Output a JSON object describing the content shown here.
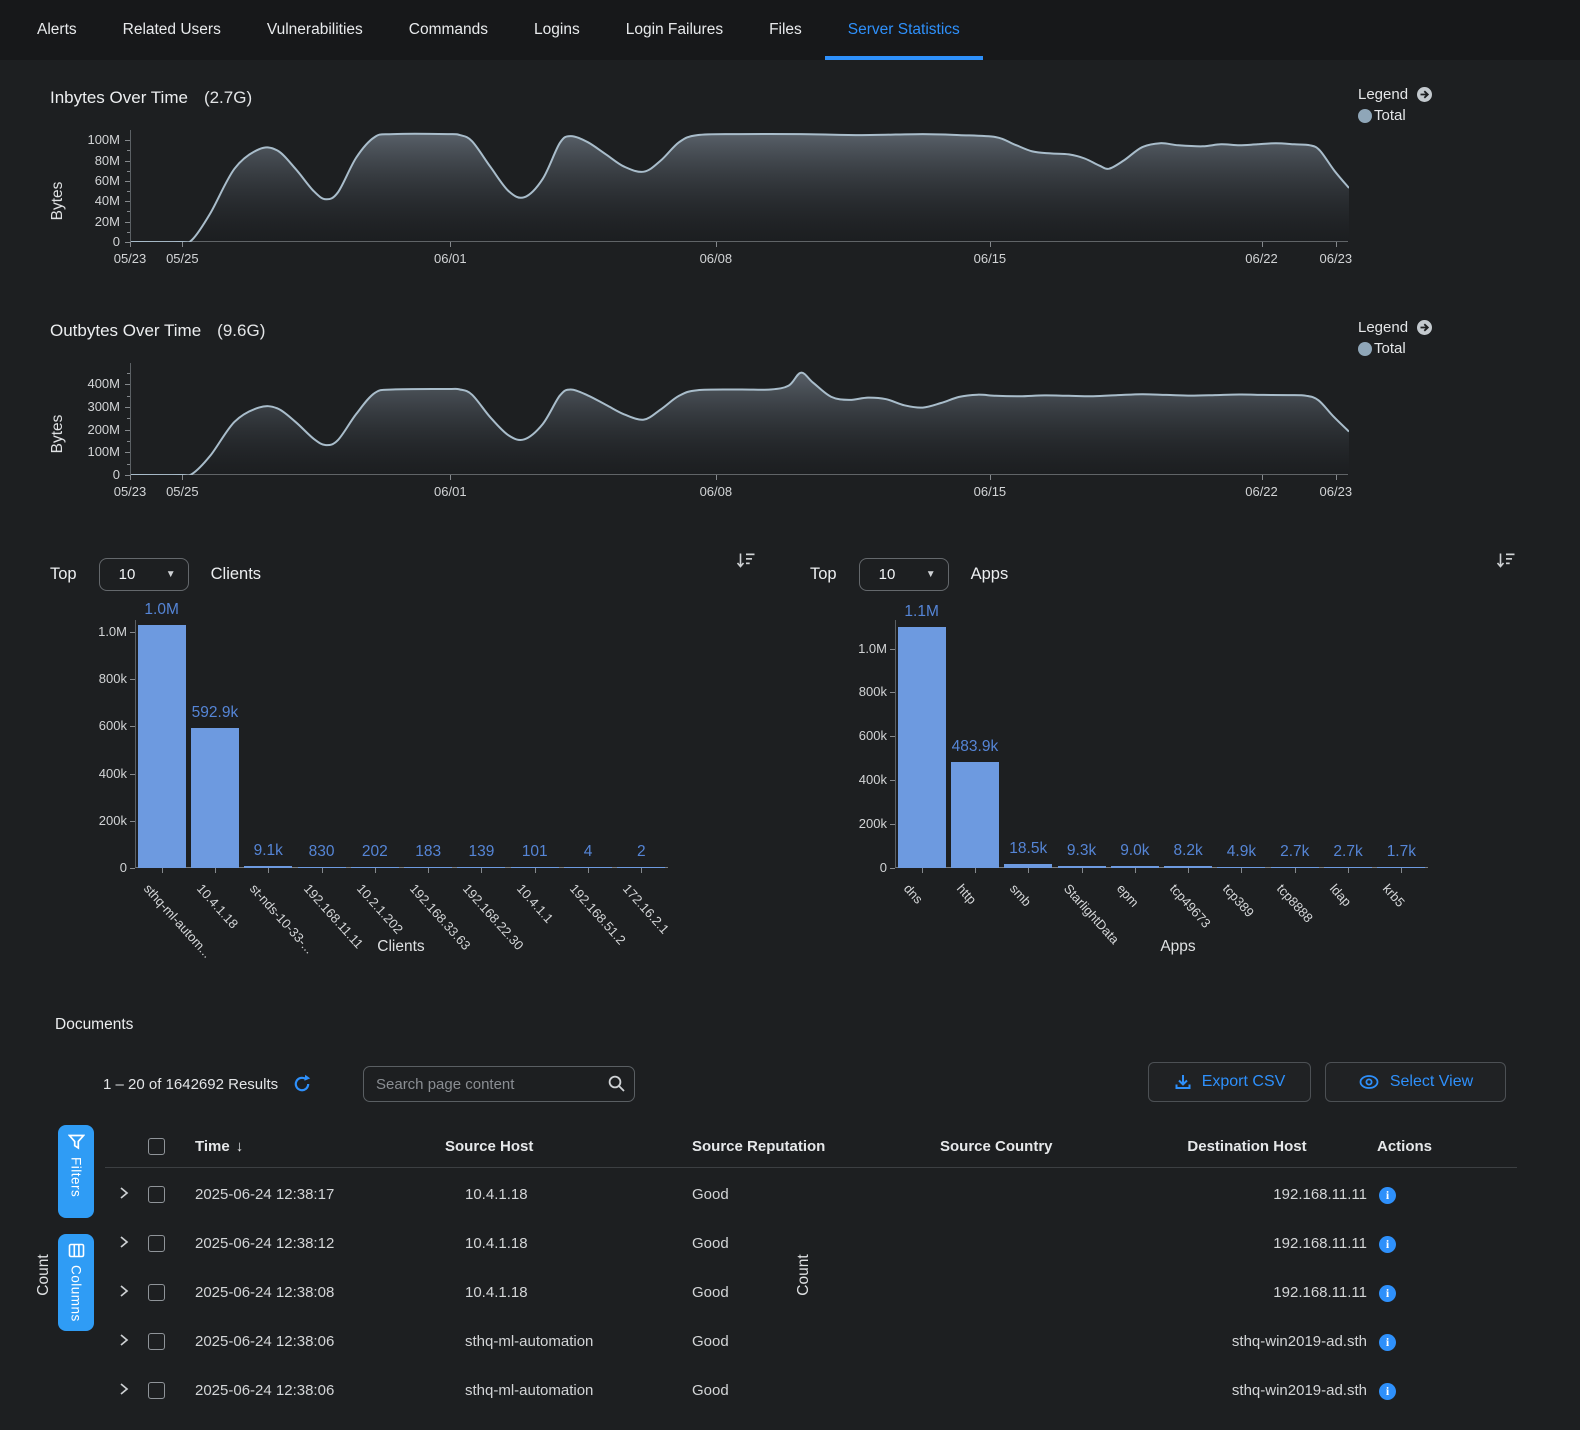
{
  "tabs": [
    {
      "label": "Alerts",
      "active": false
    },
    {
      "label": "Related Users",
      "active": false
    },
    {
      "label": "Vulnerabilities",
      "active": false
    },
    {
      "label": "Commands",
      "active": false
    },
    {
      "label": "Logins",
      "active": false
    },
    {
      "label": "Login Failures",
      "active": false
    },
    {
      "label": "Files",
      "active": false
    },
    {
      "label": "Server Statistics",
      "active": true
    }
  ],
  "legend": {
    "label": "Legend",
    "item": "Total",
    "dot_color": "#8fa6b8"
  },
  "top_controls": {
    "top_label": "Top"
  },
  "colors": {
    "accent": "#2e90fb",
    "bar_fill": "#6d9ae0",
    "bar_label": "#5585d6",
    "line": "#a9bdcb",
    "side_button": "#2f9cf5"
  },
  "chart_data": [
    {
      "type": "area",
      "title": "Inbytes Over Time",
      "total": "(2.7G)",
      "ylabel": "Bytes",
      "unit": "MB",
      "ylim": [
        0,
        110
      ],
      "legend": "Total",
      "y_ticks": [
        {
          "v": 0,
          "label": "0"
        },
        {
          "v": 20,
          "label": "20M"
        },
        {
          "v": 40,
          "label": "40M"
        },
        {
          "v": 60,
          "label": "60M"
        },
        {
          "v": 80,
          "label": "80M"
        },
        {
          "v": 100,
          "label": "100M"
        }
      ],
      "x_ticks": [
        {
          "p": 0,
          "label": "05/23"
        },
        {
          "p": 4.3,
          "label": "05/25"
        },
        {
          "p": 26.3,
          "label": "06/01"
        },
        {
          "p": 48.1,
          "label": "06/08"
        },
        {
          "p": 70.6,
          "label": "06/15"
        },
        {
          "p": 92.9,
          "label": "06/22"
        },
        {
          "p": 99,
          "label": "06/23"
        }
      ],
      "series": [
        {
          "name": "Total",
          "points": [
            [
              0,
              0
            ],
            [
              4,
              0
            ],
            [
              5,
              2
            ],
            [
              6.5,
              28
            ],
            [
              8.5,
              72
            ],
            [
              10.5,
              91
            ],
            [
              12,
              90
            ],
            [
              13.5,
              72
            ],
            [
              15,
              50
            ],
            [
              16,
              42
            ],
            [
              17,
              49
            ],
            [
              18.5,
              83
            ],
            [
              20,
              103
            ],
            [
              21.5,
              106
            ],
            [
              26,
              106
            ],
            [
              27,
              105
            ],
            [
              28,
              99
            ],
            [
              29.5,
              74
            ],
            [
              31,
              50
            ],
            [
              32.3,
              44
            ],
            [
              33.8,
              62
            ],
            [
              35.2,
              97
            ],
            [
              36.1,
              104
            ],
            [
              37.5,
              98
            ],
            [
              39,
              86
            ],
            [
              40.5,
              74
            ],
            [
              42.1,
              69
            ],
            [
              43.5,
              80
            ],
            [
              45,
              98
            ],
            [
              46.5,
              105
            ],
            [
              50,
              106
            ],
            [
              55,
              106
            ],
            [
              60,
              105
            ],
            [
              65,
              106
            ],
            [
              68,
              105
            ],
            [
              71,
              103
            ],
            [
              72.5,
              96
            ],
            [
              74,
              89
            ],
            [
              75.5,
              87
            ],
            [
              77,
              86
            ],
            [
              78.3,
              82
            ],
            [
              79.5,
              75
            ],
            [
              80.3,
              72
            ],
            [
              81.5,
              80
            ],
            [
              83,
              93
            ],
            [
              84.5,
              97
            ],
            [
              86,
              95
            ],
            [
              88,
              94
            ],
            [
              89.5,
              96
            ],
            [
              91,
              95
            ],
            [
              92.5,
              96
            ],
            [
              94,
              97
            ],
            [
              95.5,
              96
            ],
            [
              96.8,
              95
            ],
            [
              97.6,
              90
            ],
            [
              98.8,
              70
            ],
            [
              100,
              53
            ]
          ]
        }
      ]
    },
    {
      "type": "area",
      "title": "Outbytes Over Time",
      "total": "(9.6G)",
      "ylabel": "Bytes",
      "unit": "MB",
      "ylim": [
        0,
        495
      ],
      "legend": "Total",
      "y_ticks": [
        {
          "v": 0,
          "label": "0"
        },
        {
          "v": 100,
          "label": "100M"
        },
        {
          "v": 200,
          "label": "200M"
        },
        {
          "v": 300,
          "label": "300M"
        },
        {
          "v": 400,
          "label": "400M"
        }
      ],
      "x_ticks": [
        {
          "p": 0,
          "label": "05/23"
        },
        {
          "p": 4.3,
          "label": "05/25"
        },
        {
          "p": 26.3,
          "label": "06/01"
        },
        {
          "p": 48.1,
          "label": "06/08"
        },
        {
          "p": 70.6,
          "label": "06/15"
        },
        {
          "p": 92.9,
          "label": "06/22"
        },
        {
          "p": 99,
          "label": "06/23"
        }
      ],
      "series": [
        {
          "name": "Total",
          "points": [
            [
              0,
              0
            ],
            [
              4,
              0
            ],
            [
              5,
              4
            ],
            [
              6.5,
              85
            ],
            [
              8.5,
              235
            ],
            [
              10.5,
              298
            ],
            [
              12,
              295
            ],
            [
              13.5,
              235
            ],
            [
              15,
              160
            ],
            [
              16,
              132
            ],
            [
              17,
              155
            ],
            [
              18.5,
              270
            ],
            [
              20,
              362
            ],
            [
              21.5,
              378
            ],
            [
              26,
              380
            ],
            [
              27,
              378
            ],
            [
              28,
              355
            ],
            [
              29.5,
              255
            ],
            [
              31,
              175
            ],
            [
              32.3,
              158
            ],
            [
              33.8,
              225
            ],
            [
              35.2,
              350
            ],
            [
              36.1,
              378
            ],
            [
              37.5,
              352
            ],
            [
              39,
              310
            ],
            [
              40.5,
              268
            ],
            [
              42.1,
              245
            ],
            [
              43.5,
              290
            ],
            [
              45,
              350
            ],
            [
              46.5,
              375
            ],
            [
              50,
              378
            ],
            [
              52.5,
              378
            ],
            [
              54,
              395
            ],
            [
              55,
              452
            ],
            [
              56,
              408
            ],
            [
              57.5,
              345
            ],
            [
              59,
              332
            ],
            [
              60.5,
              342
            ],
            [
              62,
              335
            ],
            [
              63.5,
              308
            ],
            [
              65,
              298
            ],
            [
              66.5,
              318
            ],
            [
              68,
              345
            ],
            [
              69.5,
              355
            ],
            [
              71,
              350
            ],
            [
              73,
              348
            ],
            [
              75,
              352
            ],
            [
              77,
              350
            ],
            [
              79,
              348
            ],
            [
              81,
              353
            ],
            [
              83,
              357
            ],
            [
              85,
              354
            ],
            [
              87,
              351
            ],
            [
              89,
              353
            ],
            [
              91,
              356
            ],
            [
              93,
              354
            ],
            [
              95,
              353
            ],
            [
              96.5,
              350
            ],
            [
              97.5,
              330
            ],
            [
              98.7,
              260
            ],
            [
              100,
              192
            ]
          ]
        }
      ]
    },
    {
      "type": "bar",
      "title": "Top 10 Clients",
      "top_value": "10",
      "group_label": "Clients",
      "xlabel": "Clients",
      "ylabel": "Count",
      "ylim": [
        0,
        1050000
      ],
      "y_ticks": [
        {
          "v": 0,
          "label": "0"
        },
        {
          "v": 200000,
          "label": "200k"
        },
        {
          "v": 400000,
          "label": "400k"
        },
        {
          "v": 600000,
          "label": "600k"
        },
        {
          "v": 800000,
          "label": "800k"
        },
        {
          "v": 1000000,
          "label": "1.0M"
        }
      ],
      "categories": [
        "sthq-ml-autom...",
        "10.4.1.18",
        "st-nds-10-33-...",
        "192.168.11.11",
        "10.2.1.202",
        "192.168.33.63",
        "192.168.22.30",
        "10.4.1.1",
        "192.168.51.2",
        "172.16.2.1"
      ],
      "values": [
        1030000,
        592900,
        9100,
        830,
        202,
        183,
        139,
        101,
        4,
        2
      ],
      "value_labels": [
        "1.0M",
        "592.9k",
        "9.1k",
        "830",
        "202",
        "183",
        "139",
        "101",
        "4",
        "2"
      ]
    },
    {
      "type": "bar",
      "title": "Top 10 Apps",
      "top_value": "10",
      "group_label": "Apps",
      "xlabel": "Apps",
      "ylabel": "Count",
      "ylim": [
        0,
        1130000
      ],
      "y_ticks": [
        {
          "v": 0,
          "label": "0"
        },
        {
          "v": 200000,
          "label": "200k"
        },
        {
          "v": 400000,
          "label": "400k"
        },
        {
          "v": 600000,
          "label": "600k"
        },
        {
          "v": 800000,
          "label": "800k"
        },
        {
          "v": 1000000,
          "label": "1.0M"
        }
      ],
      "categories": [
        "dns",
        "http",
        "smb",
        "StarlightData",
        "epm",
        "tcp49673",
        "tcp389",
        "tcp8888",
        "ldap",
        "krb5"
      ],
      "values": [
        1100000,
        483900,
        18500,
        9300,
        9000,
        8200,
        4900,
        2700,
        2700,
        1700
      ],
      "value_labels": [
        "1.1M",
        "483.9k",
        "18.5k",
        "9.3k",
        "9.0k",
        "8.2k",
        "4.9k",
        "2.7k",
        "2.7k",
        "1.7k"
      ]
    }
  ],
  "documents": {
    "heading": "Documents",
    "results_text": "1 – 20 of 1642692 Results",
    "search_placeholder": "Search page content",
    "export_csv_label": "Export CSV",
    "select_view_label": "Select View",
    "filters_label": "Filters",
    "columns_label": "Columns",
    "table": {
      "columns": [
        "Time",
        "Source Host",
        "Source Reputation",
        "Source Country",
        "Destination Host",
        "Actions"
      ],
      "sort_column": "Time",
      "rows": [
        {
          "time": "2025-06-24 12:38:17",
          "source_host": "10.4.1.18",
          "source_reputation": "Good",
          "source_country": "",
          "destination_host": "192.168.11.11"
        },
        {
          "time": "2025-06-24 12:38:12",
          "source_host": "10.4.1.18",
          "source_reputation": "Good",
          "source_country": "",
          "destination_host": "192.168.11.11"
        },
        {
          "time": "2025-06-24 12:38:08",
          "source_host": "10.4.1.18",
          "source_reputation": "Good",
          "source_country": "",
          "destination_host": "192.168.11.11"
        },
        {
          "time": "2025-06-24 12:38:06",
          "source_host": "sthq-ml-automation",
          "source_reputation": "Good",
          "source_country": "",
          "destination_host": "sthq-win2019-ad.sth"
        },
        {
          "time": "2025-06-24 12:38:06",
          "source_host": "sthq-ml-automation",
          "source_reputation": "Good",
          "source_country": "",
          "destination_host": "sthq-win2019-ad.sth"
        }
      ]
    }
  }
}
